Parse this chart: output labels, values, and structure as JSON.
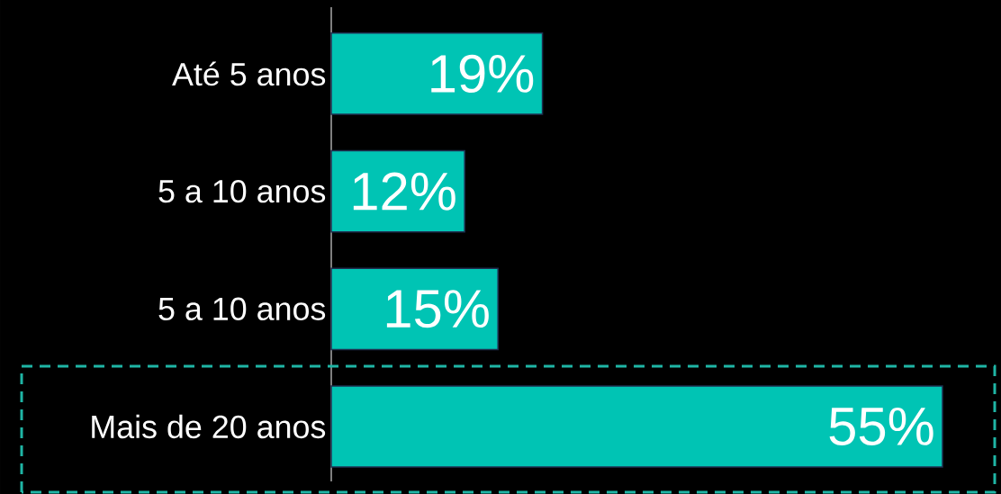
{
  "chart_data": {
    "type": "bar",
    "orientation": "horizontal",
    "categories": [
      "Até 5 anos",
      "5 a 10 anos",
      "5 a 10 anos",
      "Mais de 20 anos"
    ],
    "values": [
      19,
      12,
      15,
      55
    ],
    "value_labels": [
      "19%",
      "12%",
      "15%",
      "55%"
    ],
    "color": "#00c4b4"
  }
}
